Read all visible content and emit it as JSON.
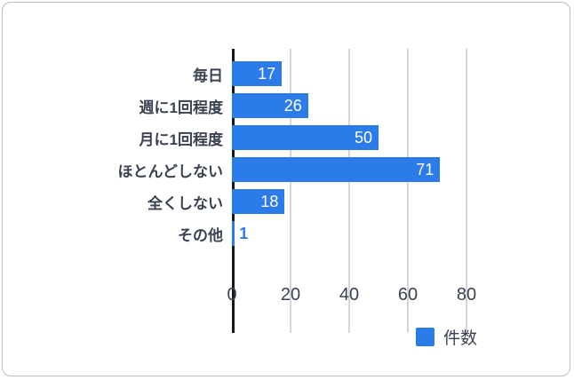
{
  "chart_data": {
    "type": "bar",
    "orientation": "horizontal",
    "title": "",
    "categories": [
      "毎日",
      "週に1回程度",
      "月に1回程度",
      "ほとんどしない",
      "全くしない",
      "その他"
    ],
    "values": [
      17,
      26,
      50,
      71,
      18,
      1
    ],
    "series_name": "件数",
    "xlim": [
      0,
      100
    ],
    "xticks": [
      0,
      20,
      40,
      60,
      80
    ],
    "grid": true,
    "legend_position": "bottom-right",
    "bar_color": "#2b7ce9",
    "value_label_inside_color": "#ffffff",
    "value_label_outside_color": "#2b7ce9",
    "axis_line_color": "#17181c",
    "gridline_color": "#d6d6d6"
  },
  "legend": {
    "label": "件数",
    "color": "#2b7ce9"
  }
}
